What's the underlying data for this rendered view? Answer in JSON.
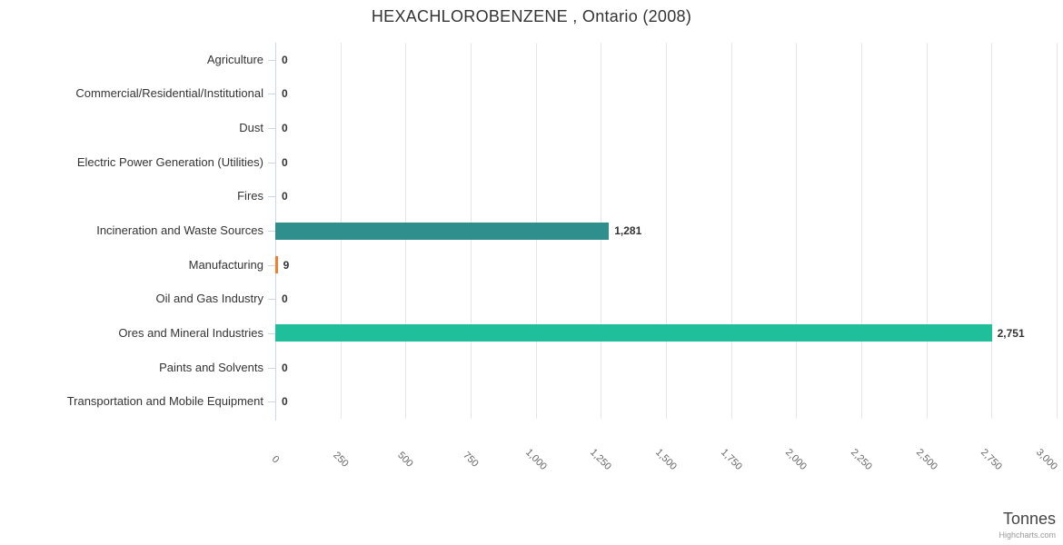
{
  "chart": {
    "credit": "Highcharts.com"
  },
  "chart_data": {
    "type": "bar",
    "orientation": "horizontal",
    "title": "HEXACHLOROBENZENE , Ontario (2008)",
    "xlabel": "Tonnes",
    "ylabel": "",
    "categories": [
      "Agriculture",
      "Commercial/Residential/Institutional",
      "Dust",
      "Electric Power Generation (Utilities)",
      "Fires",
      "Incineration and Waste Sources",
      "Manufacturing",
      "Oil and Gas Industry",
      "Ores and Mineral Industries",
      "Paints and Solvents",
      "Transportation and Mobile Equipment"
    ],
    "values": [
      0,
      0,
      0,
      0,
      0,
      1281,
      9,
      0,
      2751,
      0,
      0
    ],
    "value_labels": [
      "0",
      "0",
      "0",
      "0",
      "0",
      "1,281",
      "9",
      "0",
      "2,751",
      "0",
      "0"
    ],
    "bar_colors": [
      null,
      null,
      null,
      null,
      null,
      "#2f8f8d",
      "#ee8030",
      null,
      "#20bf9b",
      null,
      null
    ],
    "xlim": [
      0,
      3000
    ],
    "xticks": [
      0,
      250,
      500,
      750,
      1000,
      1250,
      1500,
      1750,
      2000,
      2250,
      2500,
      2750,
      3000
    ],
    "xtick_labels": [
      "0",
      "250",
      "500",
      "750",
      "1,000",
      "1,250",
      "1,500",
      "1,750",
      "2,000",
      "2,250",
      "2,500",
      "2,750",
      "3,000"
    ],
    "grid": true,
    "legend": "none",
    "colors": {
      "gridline": "#e6e6e6",
      "axis_line": "#ccd6eb",
      "tick_label": "#666666",
      "category_label": "#333333",
      "data_label": "#333333",
      "title": "#333333",
      "axis_title": "#444444",
      "credit": "#999999"
    }
  }
}
